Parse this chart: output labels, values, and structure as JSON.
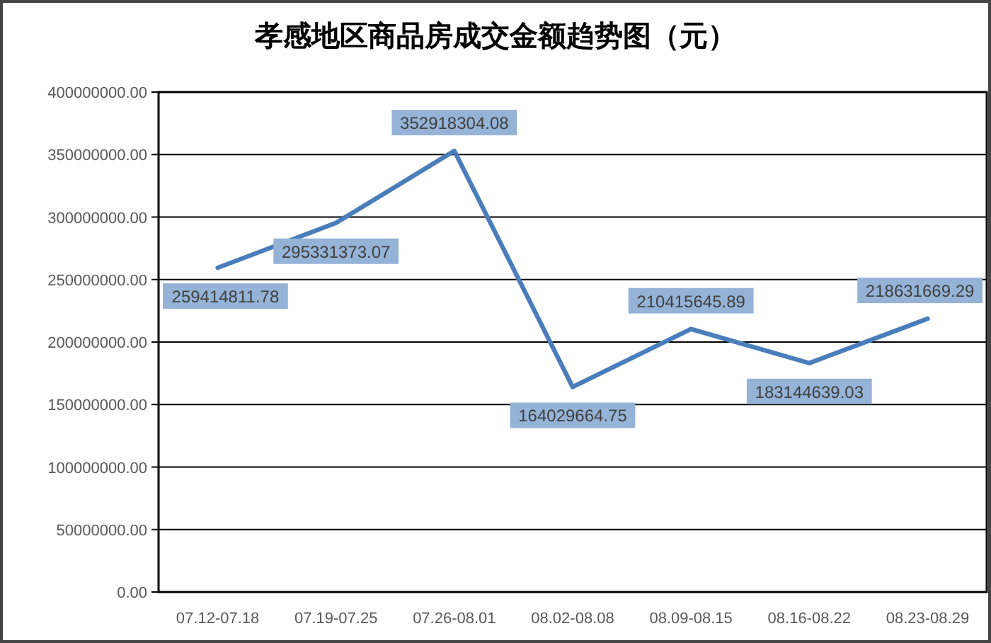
{
  "chart_data": {
    "type": "line",
    "title": "孝感地区商品房成交金额趋势图（元）",
    "categories": [
      "07.12-07.18",
      "07.19-07.25",
      "07.26-08.01",
      "08.02-08.08",
      "08.09-08.15",
      "08.16-08.22",
      "08.23-08.29"
    ],
    "series": [
      {
        "color": "#4a7ebb",
        "values": [
          259414811.78,
          295331373.07,
          352918304.08,
          164029664.75,
          210415645.89,
          183144639.03,
          218631669.29
        ]
      }
    ],
    "ylim": [
      0,
      400000000
    ],
    "yticks": [
      {
        "value": 0,
        "label": "0.00"
      },
      {
        "value": 50000000,
        "label": "50000000.00"
      },
      {
        "value": 100000000,
        "label": "100000000.00"
      },
      {
        "value": 150000000,
        "label": "150000000.00"
      },
      {
        "value": 200000000,
        "label": "200000000.00"
      },
      {
        "value": 250000000,
        "label": "250000000.00"
      },
      {
        "value": 300000000,
        "label": "300000000.00"
      },
      {
        "value": 350000000,
        "label": "350000000.00"
      },
      {
        "value": 400000000,
        "label": "400000000.00"
      }
    ],
    "grid": "y",
    "data_labels": true,
    "marker": "none",
    "line_style": "solid"
  }
}
